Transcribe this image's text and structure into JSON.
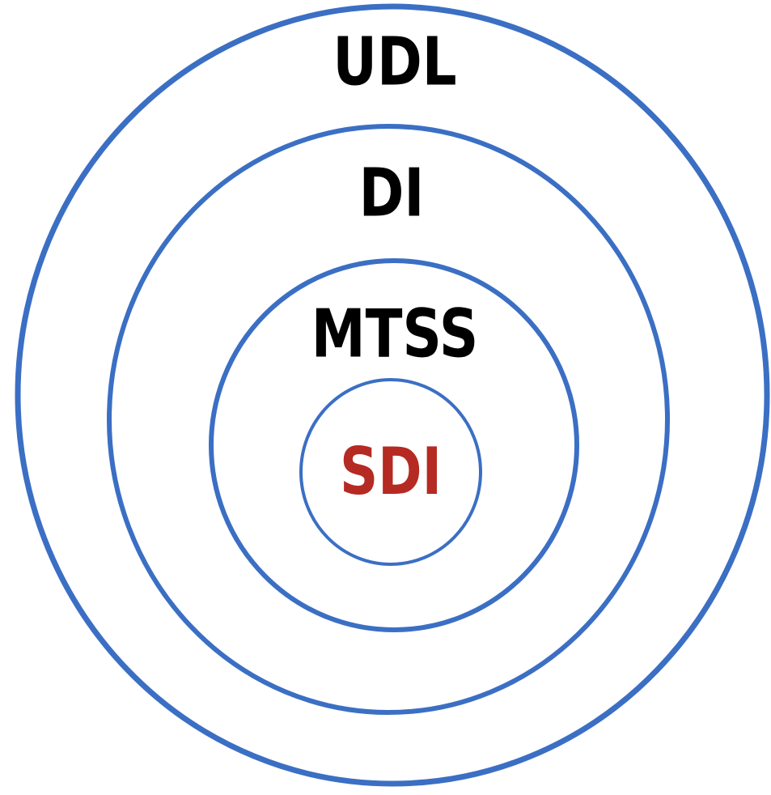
{
  "rings": [
    {
      "label": "UDL"
    },
    {
      "label": "DI"
    },
    {
      "label": "MTSS"
    },
    {
      "label": "SDI"
    }
  ]
}
